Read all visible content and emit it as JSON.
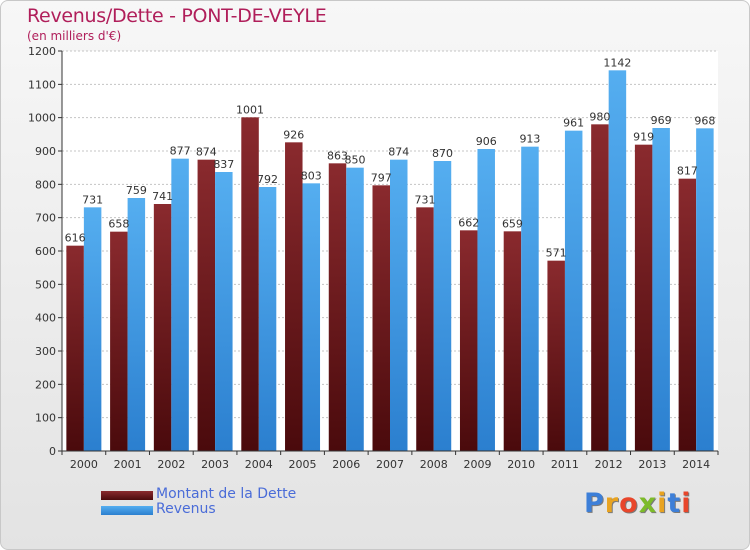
{
  "chart_data": {
    "type": "bar",
    "title": "Revenus/Dette - PONT-DE-VEYLE",
    "subtitle": "(en milliers d'€)",
    "categories": [
      "2000",
      "2001",
      "2002",
      "2003",
      "2004",
      "2005",
      "2006",
      "2007",
      "2008",
      "2009",
      "2010",
      "2011",
      "2012",
      "2013",
      "2014"
    ],
    "series": [
      {
        "name": "Montant de la Dette",
        "color": "#7a1f22",
        "values": [
          616,
          658,
          741,
          874,
          1001,
          926,
          863,
          797,
          731,
          662,
          659,
          571,
          980,
          919,
          817
        ]
      },
      {
        "name": "Revenus",
        "color": "#3f9be5",
        "values": [
          731,
          759,
          877,
          837,
          792,
          803,
          850,
          874,
          870,
          906,
          913,
          961,
          1142,
          969,
          968
        ]
      }
    ],
    "ylim": [
      0,
      1200
    ],
    "yticks": [
      0,
      100,
      200,
      300,
      400,
      500,
      600,
      700,
      800,
      900,
      1000,
      1100,
      1200
    ],
    "grid": true,
    "legend_position": "bottom-left"
  },
  "logo": {
    "text": "Proxiti",
    "colors": [
      "#3d7fd8",
      "#e8a321",
      "#e8462b",
      "#7dbb2a",
      "#e8a321",
      "#3d7fd8",
      "#e8462b"
    ]
  }
}
